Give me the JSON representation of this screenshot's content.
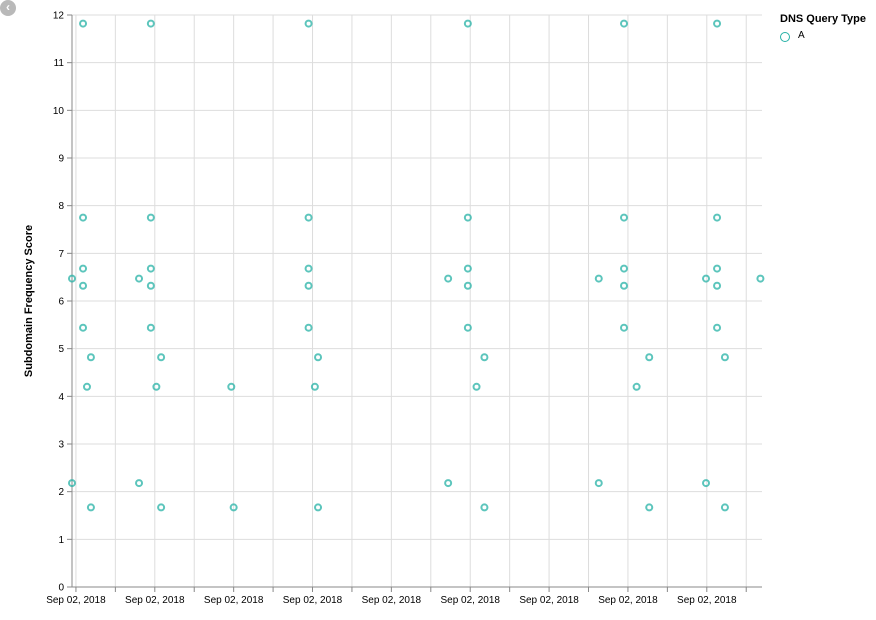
{
  "chart_data": {
    "type": "scatter",
    "title": "",
    "xlabel": "",
    "ylabel": "Subdomain Frequency Score",
    "ylim": [
      0,
      12
    ],
    "y_ticks": [
      "0",
      "1",
      "2",
      "3",
      "4",
      "5",
      "6",
      "7",
      "8",
      "9",
      "10",
      "11",
      "12"
    ],
    "x_ticks": [
      "Sep 02, 2018",
      "Sep 02, 2018",
      "Sep 02, 2018",
      "Sep 02, 2018",
      "Sep 02, 2018",
      "Sep 02, 2018",
      "Sep 02, 2018",
      "Sep 02, 2018",
      "Sep 02, 2018"
    ],
    "x_tick_positions": [
      0,
      1,
      2,
      3,
      4,
      5,
      6,
      7,
      8
    ],
    "xlim": [
      -0.05,
      8.7
    ],
    "grid": true,
    "legend": {
      "title": "DNS Query Type",
      "placement": "top-right",
      "entries": [
        "A"
      ]
    },
    "series": [
      {
        "name": "A",
        "color": "#26b1a6",
        "points": [
          {
            "x": -0.05,
            "y": 6.47
          },
          {
            "x": -0.05,
            "y": 2.18
          },
          {
            "x": 0.09,
            "y": 11.82
          },
          {
            "x": 0.09,
            "y": 7.75
          },
          {
            "x": 0.09,
            "y": 6.68
          },
          {
            "x": 0.09,
            "y": 6.32
          },
          {
            "x": 0.09,
            "y": 5.44
          },
          {
            "x": 0.14,
            "y": 4.2
          },
          {
            "x": 0.19,
            "y": 4.82
          },
          {
            "x": 0.19,
            "y": 1.67
          },
          {
            "x": 0.8,
            "y": 6.47
          },
          {
            "x": 0.8,
            "y": 2.18
          },
          {
            "x": 0.95,
            "y": 11.82
          },
          {
            "x": 0.95,
            "y": 7.75
          },
          {
            "x": 0.95,
            "y": 6.68
          },
          {
            "x": 0.95,
            "y": 6.32
          },
          {
            "x": 0.95,
            "y": 5.44
          },
          {
            "x": 1.02,
            "y": 4.2
          },
          {
            "x": 1.08,
            "y": 4.82
          },
          {
            "x": 1.08,
            "y": 1.67
          },
          {
            "x": 1.97,
            "y": 4.2
          },
          {
            "x": 2.0,
            "y": 1.67
          },
          {
            "x": 2.95,
            "y": 11.82
          },
          {
            "x": 2.95,
            "y": 7.75
          },
          {
            "x": 2.95,
            "y": 6.68
          },
          {
            "x": 2.95,
            "y": 6.32
          },
          {
            "x": 2.95,
            "y": 5.44
          },
          {
            "x": 3.03,
            "y": 4.2
          },
          {
            "x": 3.07,
            "y": 4.82
          },
          {
            "x": 3.07,
            "y": 1.67
          },
          {
            "x": 4.72,
            "y": 6.47
          },
          {
            "x": 4.72,
            "y": 2.18
          },
          {
            "x": 4.97,
            "y": 11.82
          },
          {
            "x": 4.97,
            "y": 7.75
          },
          {
            "x": 4.97,
            "y": 6.68
          },
          {
            "x": 4.97,
            "y": 6.32
          },
          {
            "x": 4.97,
            "y": 5.44
          },
          {
            "x": 5.08,
            "y": 4.2
          },
          {
            "x": 5.18,
            "y": 4.82
          },
          {
            "x": 5.18,
            "y": 1.67
          },
          {
            "x": 6.63,
            "y": 6.47
          },
          {
            "x": 6.63,
            "y": 2.18
          },
          {
            "x": 6.95,
            "y": 11.82
          },
          {
            "x": 6.95,
            "y": 7.75
          },
          {
            "x": 6.95,
            "y": 6.68
          },
          {
            "x": 6.95,
            "y": 6.32
          },
          {
            "x": 6.95,
            "y": 5.44
          },
          {
            "x": 7.11,
            "y": 4.2
          },
          {
            "x": 7.27,
            "y": 4.82
          },
          {
            "x": 7.27,
            "y": 1.67
          },
          {
            "x": 7.99,
            "y": 6.47
          },
          {
            "x": 7.99,
            "y": 2.18
          },
          {
            "x": 8.13,
            "y": 11.82
          },
          {
            "x": 8.13,
            "y": 7.75
          },
          {
            "x": 8.13,
            "y": 6.68
          },
          {
            "x": 8.13,
            "y": 6.32
          },
          {
            "x": 8.13,
            "y": 5.44
          },
          {
            "x": 8.23,
            "y": 4.82
          },
          {
            "x": 8.23,
            "y": 1.67
          },
          {
            "x": 8.68,
            "y": 6.47
          }
        ]
      }
    ]
  },
  "ui": {
    "back_icon": "chevron-left-icon",
    "back_glyph": "‹"
  }
}
